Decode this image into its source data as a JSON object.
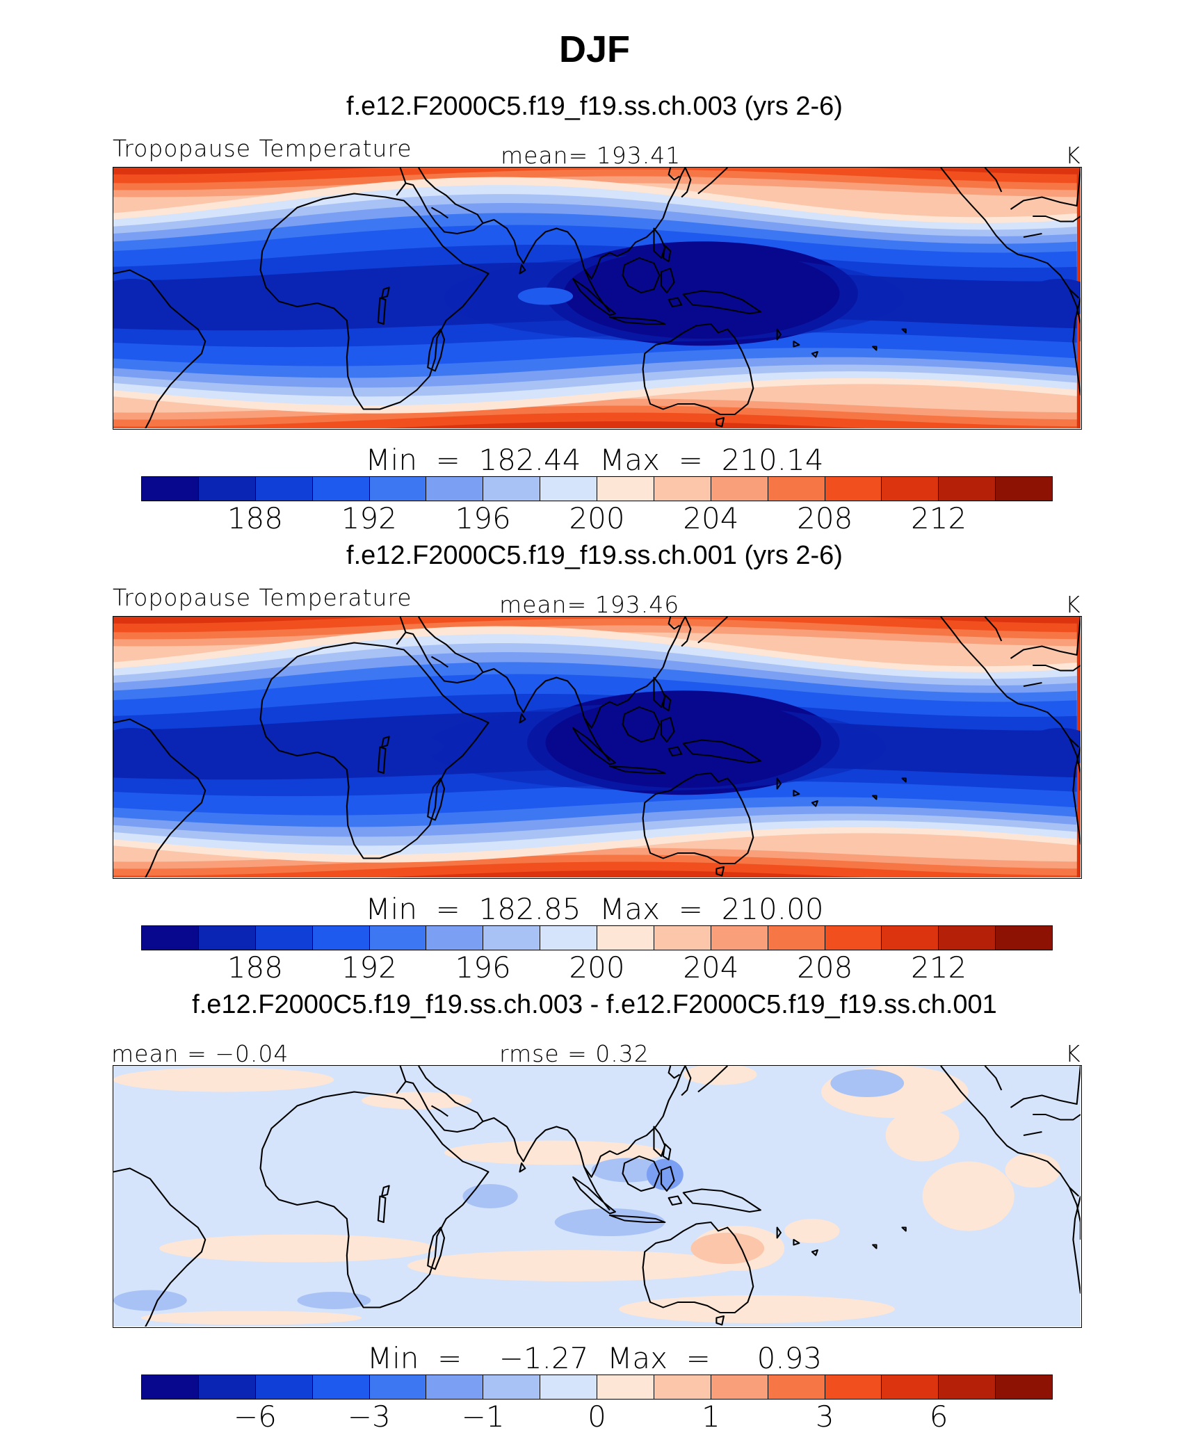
{
  "title": "DJF",
  "colors": [
    "#08088f",
    "#0a24b4",
    "#0f3fd6",
    "#1e5aee",
    "#3d78f2",
    "#7a9ff3",
    "#a9c2f5",
    "#d5e4fb",
    "#fde6d6",
    "#fbc6a9",
    "#f9a07a",
    "#f77646",
    "#f1501e",
    "#dd3410",
    "#b52008",
    "#8e1204"
  ],
  "panels": [
    {
      "case_title": "f.e12.F2000C5.f19_f19.ss.ch.003 (yrs 2-6)",
      "left_label": "Tropopause  Temperature",
      "mid_label": "mean=  193.41",
      "unit": "K",
      "minmax": "Min  =  182.44  Max  =  210.14",
      "ticks": [
        "188",
        "192",
        "196",
        "200",
        "204",
        "208",
        "212"
      ],
      "field": "tropopause"
    },
    {
      "case_title": "f.e12.F2000C5.f19_f19.ss.ch.001 (yrs 2-6)",
      "left_label": "Tropopause  Temperature",
      "mid_label": "mean=  193.46",
      "unit": "K",
      "minmax": "Min  =  182.85  Max  =  210.00",
      "ticks": [
        "188",
        "192",
        "196",
        "200",
        "204",
        "208",
        "212"
      ],
      "field": "tropopause"
    },
    {
      "case_title": "f.e12.F2000C5.f19_f19.ss.ch.003 - f.e12.F2000C5.f19_f19.ss.ch.001",
      "left_label": "mean  =   −0.04",
      "mid_label": "rmse  =     0.32",
      "unit": "K",
      "minmax": "Min  =    −1.27  Max  =     0.93",
      "ticks": [
        "−6",
        "−3",
        "−1",
        "0",
        "1",
        "3",
        "6"
      ],
      "field": "difference"
    }
  ]
}
